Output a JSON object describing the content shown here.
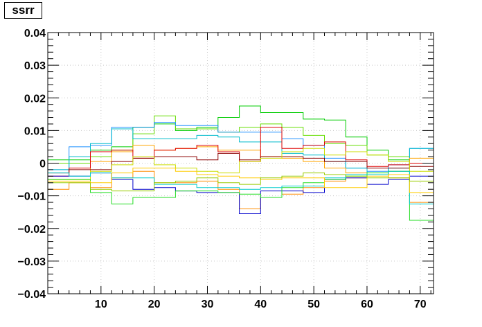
{
  "title": "ssrr",
  "chart_data": {
    "type": "line",
    "title": "ssrr",
    "xlabel": "",
    "ylabel": "",
    "xlim": [
      0,
      72.5
    ],
    "ylim": [
      -0.04,
      0.04
    ],
    "grid": true,
    "legend": "none",
    "x_ticks": [
      "10",
      "20",
      "30",
      "40",
      "50",
      "60",
      "70"
    ],
    "y_ticks": [
      "0.04",
      "0.03",
      "0.02",
      "0.01",
      "0",
      "−0.01",
      "−0.02",
      "−0.03",
      "−0.04"
    ],
    "bin_edges": [
      0,
      4,
      8,
      12,
      16,
      20,
      24,
      28,
      32,
      36,
      40,
      44,
      48,
      52,
      56,
      60,
      64,
      68,
      72.5
    ],
    "series": [
      {
        "color": "#00cc00",
        "values": [
          0.001,
          0.001,
          0.004,
          0.005,
          0.011,
          0.012,
          0.01,
          0.011,
          0.014,
          0.0175,
          0.0155,
          0.0155,
          0.0135,
          0.0132,
          0.008,
          0.004,
          0.001,
          0.0
        ]
      },
      {
        "color": "#66dd00",
        "values": [
          0.0,
          0.0,
          0.002,
          0.004,
          0.009,
          0.0145,
          0.0105,
          0.0105,
          0.0095,
          0.011,
          0.012,
          0.011,
          0.0085,
          0.006,
          0.0055,
          0.0025,
          0.002,
          0.0
        ]
      },
      {
        "color": "#1e90ff",
        "values": [
          -0.002,
          0.005,
          0.0055,
          0.011,
          0.011,
          0.0125,
          0.0115,
          0.0115,
          0.0095,
          0.0095,
          0.0095,
          0.0075,
          0.0055,
          0.0015,
          -0.0015,
          -0.0025,
          -0.0005,
          0.0045
        ]
      },
      {
        "color": "#00bbcc",
        "values": [
          -0.002,
          0.002,
          0.006,
          0.0105,
          0.0075,
          0.0075,
          0.0075,
          0.0085,
          0.008,
          0.0065,
          0.0065,
          0.003,
          0.0025,
          0.0005,
          -0.0015,
          -0.0035,
          -0.0015,
          0.0045
        ]
      },
      {
        "color": "#ffa500",
        "values": [
          -0.005,
          -0.005,
          0.0005,
          0.0035,
          0.0055,
          0.004,
          0.0045,
          0.005,
          0.004,
          0.004,
          0.002,
          0.0015,
          0.0005,
          -0.0015,
          -0.003,
          -0.0035,
          -0.0025,
          0.0015
        ]
      },
      {
        "color": "#dd0000",
        "values": [
          -0.004,
          -0.0015,
          0.0035,
          0.004,
          0.0015,
          0.004,
          0.0045,
          0.0055,
          0.0035,
          0.0005,
          0.011,
          0.0045,
          0.0055,
          0.0065,
          0.001,
          -0.001,
          -0.0005,
          0.0
        ]
      },
      {
        "color": "#8b0000",
        "values": [
          -0.003,
          -0.002,
          -0.002,
          0.0005,
          0.0015,
          0.002,
          0.002,
          0.001,
          0.003,
          0.001,
          0.002,
          0.002,
          0.0015,
          0.0005,
          0.0005,
          -0.0015,
          -0.0015,
          -0.001
        ]
      },
      {
        "color": "#ccdd00",
        "values": [
          -0.005,
          -0.005,
          -0.0025,
          -0.0005,
          0.002,
          -0.0005,
          -0.0015,
          -0.0025,
          -0.003,
          0.0005,
          0.0015,
          0.0035,
          0.0045,
          0.0025,
          0.0035,
          0.0025,
          0.0005,
          -0.0025
        ]
      },
      {
        "color": "#ff8c00",
        "values": [
          -0.008,
          -0.006,
          -0.0075,
          -0.0045,
          -0.0025,
          -0.006,
          -0.006,
          -0.0055,
          -0.008,
          -0.014,
          -0.0105,
          -0.0095,
          -0.0075,
          -0.0055,
          -0.0045,
          -0.0035,
          -0.0045,
          -0.012
        ]
      },
      {
        "color": "#0000cc",
        "values": [
          -0.004,
          -0.004,
          -0.003,
          -0.005,
          -0.008,
          -0.0075,
          -0.0085,
          -0.009,
          -0.009,
          -0.0155,
          -0.0085,
          -0.0085,
          -0.009,
          -0.005,
          -0.0045,
          -0.0065,
          -0.005,
          -0.004
        ]
      },
      {
        "color": "#22dd22",
        "values": [
          -0.005,
          -0.005,
          -0.009,
          -0.0125,
          -0.0105,
          -0.0105,
          -0.0085,
          -0.0085,
          -0.009,
          -0.0095,
          -0.0105,
          -0.0075,
          -0.006,
          -0.005,
          -0.004,
          -0.003,
          -0.0025,
          -0.0175
        ]
      },
      {
        "color": "#00cccc",
        "values": [
          -0.003,
          -0.004,
          -0.003,
          -0.0045,
          -0.0045,
          -0.0065,
          -0.0065,
          -0.0075,
          -0.0075,
          -0.008,
          -0.0075,
          -0.007,
          -0.007,
          -0.0045,
          -0.0035,
          -0.0035,
          -0.0025,
          -0.0125
        ]
      },
      {
        "color": "#ffcc00",
        "values": [
          -0.0055,
          -0.0055,
          -0.006,
          -0.003,
          -0.0015,
          -0.0015,
          -0.0025,
          -0.0035,
          -0.004,
          -0.0045,
          -0.005,
          -0.0045,
          -0.0045,
          -0.0075,
          -0.0075,
          -0.004,
          -0.0035,
          -0.009
        ]
      },
      {
        "color": "#99cc00",
        "values": [
          -0.006,
          -0.006,
          -0.008,
          -0.0085,
          -0.0085,
          -0.006,
          -0.0055,
          -0.0045,
          -0.006,
          -0.0065,
          -0.0045,
          -0.004,
          -0.003,
          -0.0035,
          -0.004,
          -0.0045,
          -0.0045,
          -0.0055
        ]
      }
    ]
  }
}
